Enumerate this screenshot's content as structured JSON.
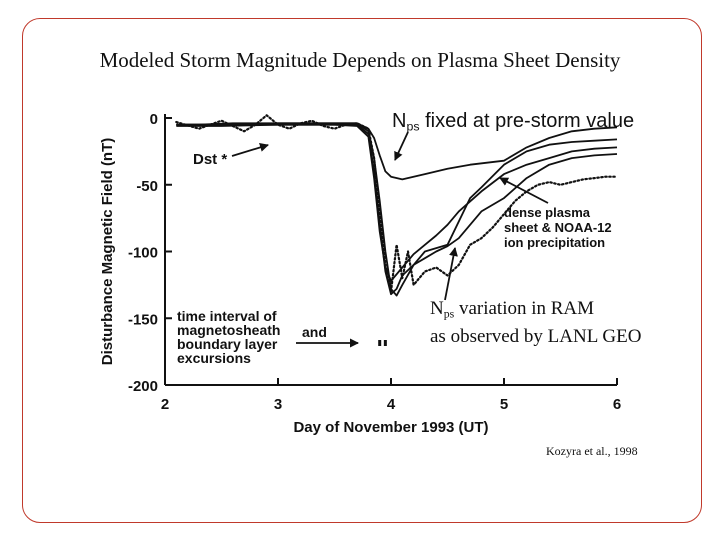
{
  "slide": {
    "title": "Modeled Storm Magnitude Depends on Plasma Sheet Density",
    "citation": "Kozyra et al., 1998",
    "annotations": {
      "nps_fixed": {
        "N": "N",
        "sub": "ps",
        "rest": " fixed at pre-storm value"
      },
      "nps_variation": {
        "N": "N",
        "sub": "ps",
        "line1_rest": " variation in RAM",
        "line2": "as observed by LANL GEO"
      }
    }
  },
  "colors": {
    "frame": "#c0392b",
    "ink": "#111111"
  },
  "chart_data": {
    "type": "line",
    "xlabel": "Day of November 1993 (UT)",
    "ylabel": "Disturbance Magnetic Field (nT)",
    "xlim": [
      2,
      6
    ],
    "ylim": [
      -200,
      0
    ],
    "xticks": [
      2,
      3,
      4,
      5,
      6
    ],
    "yticks": [
      0,
      -50,
      -100,
      -150,
      -200
    ],
    "ytick_labels": [
      "0",
      "-50",
      "-100",
      "-150",
      "-200"
    ],
    "grid": false,
    "labels": {
      "dst": "Dst *",
      "dense": [
        "dense plasma",
        "sheet & NOAA-12",
        "ion precipitation"
      ],
      "interval": [
        "time interval of",
        "magnetosheath",
        "boundary layer",
        "excursions"
      ],
      "interval_and": "and"
    },
    "interval_marks": [
      3.9,
      3.95
    ],
    "series": [
      {
        "id": "dst",
        "style": "dotted",
        "x": [
          2.1,
          2.3,
          2.5,
          2.7,
          2.8,
          2.9,
          3.0,
          3.1,
          3.2,
          3.3,
          3.4,
          3.5,
          3.6,
          3.7,
          3.8,
          3.85,
          3.9,
          3.95,
          4.0,
          4.05,
          4.1,
          4.15,
          4.2,
          4.3,
          4.4,
          4.5,
          4.6,
          4.7,
          4.8,
          4.9,
          5.0,
          5.1,
          5.2,
          5.3,
          5.4,
          5.5,
          5.6,
          5.7,
          5.8,
          5.9,
          6.0
        ],
        "y": [
          -3,
          -8,
          -2,
          -10,
          -5,
          2,
          -5,
          -8,
          -4,
          -2,
          -6,
          -8,
          -5,
          -4,
          -8,
          -30,
          -70,
          -110,
          -130,
          -95,
          -120,
          -100,
          -125,
          -115,
          -112,
          -118,
          -110,
          -95,
          -90,
          -82,
          -72,
          -62,
          -55,
          -50,
          -48,
          -50,
          -48,
          -46,
          -45,
          -44,
          -44
        ]
      },
      {
        "id": "nps_fixed",
        "style": "solid",
        "x": [
          2.1,
          2.3,
          2.6,
          3.0,
          3.4,
          3.7,
          3.8,
          3.85,
          3.9,
          3.95,
          4.0,
          4.1,
          4.2,
          4.3,
          4.5,
          4.7,
          5.0,
          5.2,
          5.4,
          5.6,
          5.8,
          6.0
        ],
        "y": [
          -5,
          -5,
          -4,
          -4,
          -4,
          -4,
          -8,
          -15,
          -28,
          -40,
          -44,
          -46,
          -44,
          -42,
          -38,
          -35,
          -32,
          -22,
          -15,
          -10,
          -8,
          -7
        ]
      },
      {
        "id": "dense_noaa12",
        "style": "solid",
        "x": [
          2.1,
          2.5,
          3.0,
          3.5,
          3.7,
          3.8,
          3.85,
          3.9,
          3.95,
          4.0,
          4.05,
          4.1,
          4.2,
          4.3,
          4.5,
          4.7,
          4.8,
          5.0,
          5.2,
          5.4,
          5.6,
          5.8,
          6.0
        ],
        "y": [
          -5,
          -5,
          -4,
          -4,
          -4,
          -10,
          -30,
          -62,
          -100,
          -128,
          -133,
          -125,
          -110,
          -100,
          -95,
          -60,
          -52,
          -35,
          -25,
          -20,
          -18,
          -17,
          -16
        ]
      },
      {
        "id": "lanl_geo",
        "style": "solid",
        "x": [
          2.1,
          2.5,
          3.0,
          3.5,
          3.7,
          3.8,
          3.85,
          3.9,
          3.95,
          4.0,
          4.05,
          4.1,
          4.2,
          4.3,
          4.4,
          4.5,
          4.6,
          4.7,
          4.8,
          5.0,
          5.2,
          5.4,
          5.6,
          5.8,
          6.0
        ],
        "y": [
          -6,
          -6,
          -5,
          -5,
          -5,
          -12,
          -40,
          -80,
          -115,
          -132,
          -128,
          -118,
          -110,
          -105,
          -100,
          -96,
          -90,
          -80,
          -70,
          -60,
          -45,
          -35,
          -30,
          -28,
          -27
        ]
      },
      {
        "id": "model_extra",
        "style": "solid",
        "x": [
          2.1,
          2.5,
          3.0,
          3.5,
          3.7,
          3.8,
          3.85,
          3.9,
          3.95,
          4.0,
          4.1,
          4.2,
          4.3,
          4.4,
          4.5,
          4.6,
          4.8,
          5.0,
          5.2,
          5.4,
          5.6,
          5.8,
          6.0
        ],
        "y": [
          -5,
          -5,
          -5,
          -5,
          -6,
          -14,
          -45,
          -85,
          -112,
          -122,
          -112,
          -102,
          -95,
          -88,
          -80,
          -70,
          -55,
          -42,
          -35,
          -30,
          -25,
          -23,
          -22
        ]
      }
    ]
  }
}
